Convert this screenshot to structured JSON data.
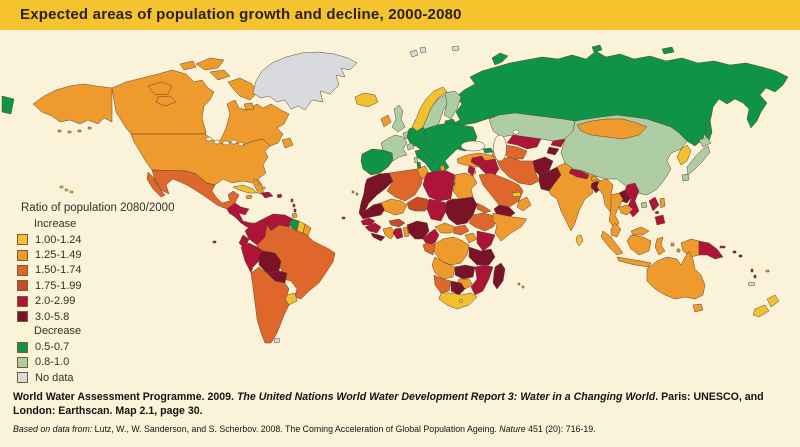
{
  "title": "Expected areas of population growth and decline, 2000-2080",
  "palette": {
    "background": "#FBF2DA",
    "title_bar": "#F4C32D",
    "inc1": "#F2C12F",
    "inc2": "#EF9A2C",
    "inc3": "#DF672C",
    "inc4": "#C84A26",
    "inc5": "#AE1438",
    "inc6": "#7A1228",
    "dec1": "#0F9347",
    "dec2": "#AFCDA5",
    "nodata": "#D9DADF",
    "water": "#FBF2DA"
  },
  "legend": {
    "title": "Ratio of population 2080/2000",
    "increase_label": "Increase",
    "decrease_label": "Decrease",
    "items": [
      {
        "key": "inc1",
        "label": "1.00-1.24"
      },
      {
        "key": "inc2",
        "label": "1.25-1.49"
      },
      {
        "key": "inc3",
        "label": "1.50-1.74"
      },
      {
        "key": "inc4",
        "label": "1.75-1.99"
      },
      {
        "key": "inc5",
        "label": "2.0-2.99"
      },
      {
        "key": "inc6",
        "label": "3.0-5.8"
      },
      {
        "key": "dec1",
        "label": "0.5-0.7"
      },
      {
        "key": "dec2",
        "label": "0.8-1.0"
      },
      {
        "key": "nodata",
        "label": "No data"
      }
    ]
  },
  "footer": {
    "citation_segments": [
      {
        "t": "World Water Assessment Programme. 2009. ",
        "i": false
      },
      {
        "t": "The United Nations World Water Development Report 3: Water in a Changing World",
        "i": true
      },
      {
        "t": ". Paris: UNESCO, and London: Earthscan. Map 2.1, page 30.",
        "i": false
      }
    ],
    "source_segments": [
      {
        "t": "Based on data from: ",
        "i": true
      },
      {
        "t": "Lutz, W., W. Sanderson, and S. Scherbov. 2008. The Coming Acceleration of Global Population Ageing. ",
        "i": false
      },
      {
        "t": "Nature",
        "i": true
      },
      {
        "t": " 451 (20): 716-19.",
        "i": false
      }
    ]
  },
  "chart_data": {
    "type": "heatmap",
    "title": "Expected areas of population growth and decline, 2000-2080",
    "legend_title": "Ratio of population 2080/2000",
    "classes": {
      "inc1": "1.00-1.24",
      "inc2": "1.25-1.49",
      "inc3": "1.50-1.74",
      "inc4": "1.75-1.99",
      "inc5": "2.0-2.99",
      "inc6": "3.0-5.8",
      "dec1": "0.5-0.7",
      "dec2": "0.8-1.0",
      "nodata": "No data"
    }
  },
  "map": {
    "regions": {
      "russia": "dec1",
      "chukotka": "dec1",
      "svalbard": "nodata",
      "franz_josef": "nodata",
      "novaya_zemlya": "dec1",
      "severnaya_zemlya": "dec1",
      "new_siberian_islands": "dec1",
      "kazakhstan": "dec2",
      "china": "dec2",
      "mongolia": "inc2",
      "iberia": "dec1",
      "france": "dec2",
      "uk": "dec2",
      "ireland": "inc2",
      "iceland": "inc1",
      "benelux": "dec2",
      "germany": "dec1",
      "denmark": "dec1",
      "norway": "inc1",
      "sweden": "dec2",
      "finland": "dec2",
      "baltics": "dec1",
      "eastern_europe": "dec1",
      "albania": "inc2",
      "italy": "dec1",
      "sicily": "dec1",
      "sardinia": "dec1",
      "corsica": "dec2",
      "crete": "dec1",
      "switzerland": "dec2",
      "turkey": "inc2",
      "cyprus": "inc2",
      "georgia": "dec1",
      "azerbaijan": "inc2",
      "syria": "inc5",
      "iraq": "inc5",
      "jordan": "inc5",
      "saudi_arabia": "inc3",
      "yemen": "inc6",
      "oman": "inc2",
      "gulf_states": "inc1",
      "iran": "inc3",
      "turkmenistan": "inc3",
      "uzbekistan": "inc5",
      "kyrgyzstan": "inc5",
      "tajikistan": "inc6",
      "afghanistan": "inc6",
      "pakistan": "inc6",
      "india": "inc2",
      "nepal": "inc5",
      "bhutan": "inc2",
      "bangladesh": "inc6",
      "sri_lanka": "inc1",
      "korea": "inc1",
      "japan": "dec2",
      "sakhalin": "dec1",
      "taiwan": "inc2",
      "hainan": "dec2",
      "myanmar": "inc2",
      "thailand": "inc2",
      "laos": "inc6",
      "vietnam": "inc5",
      "cambodia": "inc2",
      "malay_peninsula": "inc2",
      "malaysia_borneo": "inc2",
      "sumatra": "inc2",
      "java": "inc2",
      "borneo": "inc2",
      "sulawesi": "inc2",
      "moluccas": "inc2",
      "lesser_sunda": "inc2",
      "timor": "inc5",
      "west_new_guinea": "inc2",
      "png": "inc5",
      "new_britain": "inc5",
      "solomons": "inc6",
      "vanuatu": "inc5",
      "fiji": "inc2",
      "new_caledonia": "nodata",
      "philippines": "inc5",
      "australia": "inc2",
      "tasmania": "inc2",
      "nz_north": "inc1",
      "nz_south": "inc1",
      "morocco_wsahara": "inc6",
      "algeria": "inc3",
      "tunisia": "inc2",
      "libya": "inc5",
      "egypt": "inc2",
      "mauritania": "inc6",
      "mali": "inc2",
      "niger": "inc4",
      "chad": "inc5",
      "sudan": "inc6",
      "eritrea": "inc3",
      "ethiopia": "inc3",
      "somalia": "inc2",
      "senegal": "inc5",
      "guinea": "inc5",
      "sierra_leone_liberia": "inc6",
      "ivory_coast": "inc2",
      "ghana": "inc5",
      "togo_benin": "inc2",
      "burkina": "inc4",
      "nigeria": "inc6",
      "cameroon": "inc5",
      "car": "inc2",
      "south_sudan": "inc3",
      "uganda": "inc2",
      "kenya": "inc5",
      "drc": "inc2",
      "congo_gabon": "inc3",
      "tanzania": "inc6",
      "angola": "inc2",
      "zambia": "inc6",
      "mozambique": "inc5",
      "zimbabwe": "inc2",
      "namibia": "inc3",
      "botswana": "inc6",
      "south_africa": "inc1",
      "madagascar": "inc6",
      "canary": "inc2",
      "cape_verde": "inc5",
      "mauritius": "inc2",
      "alaska": "inc2",
      "aleutians": "inc2",
      "canada": "inc2",
      "usa": "inc2",
      "baja": "inc3",
      "mexico": "inc3",
      "central_america": "inc5",
      "cuba": "inc1",
      "hispaniola": "inc5",
      "jamaica": "inc2",
      "puerto_rico": "inc5",
      "bahamas": "inc1",
      "lesser_antilles": "inc5",
      "trinidad": "inc2",
      "hawaii": "inc1",
      "colombia": "inc5",
      "venezuela": "inc5",
      "guyana": "dec1",
      "suriname": "inc1",
      "french_guiana": "inc2",
      "ecuador": "inc5",
      "peru": "inc5",
      "brazil": "inc3",
      "bolivia": "inc6",
      "paraguay": "inc6",
      "uruguay": "inc1",
      "argentina_chile": "inc3",
      "falklands": "nodata",
      "galapagos": "inc5",
      "greenland": "nodata",
      "great_lakes": "water",
      "black_sea": "water",
      "caspian_sea": "water",
      "aral_sea": "water"
    }
  }
}
